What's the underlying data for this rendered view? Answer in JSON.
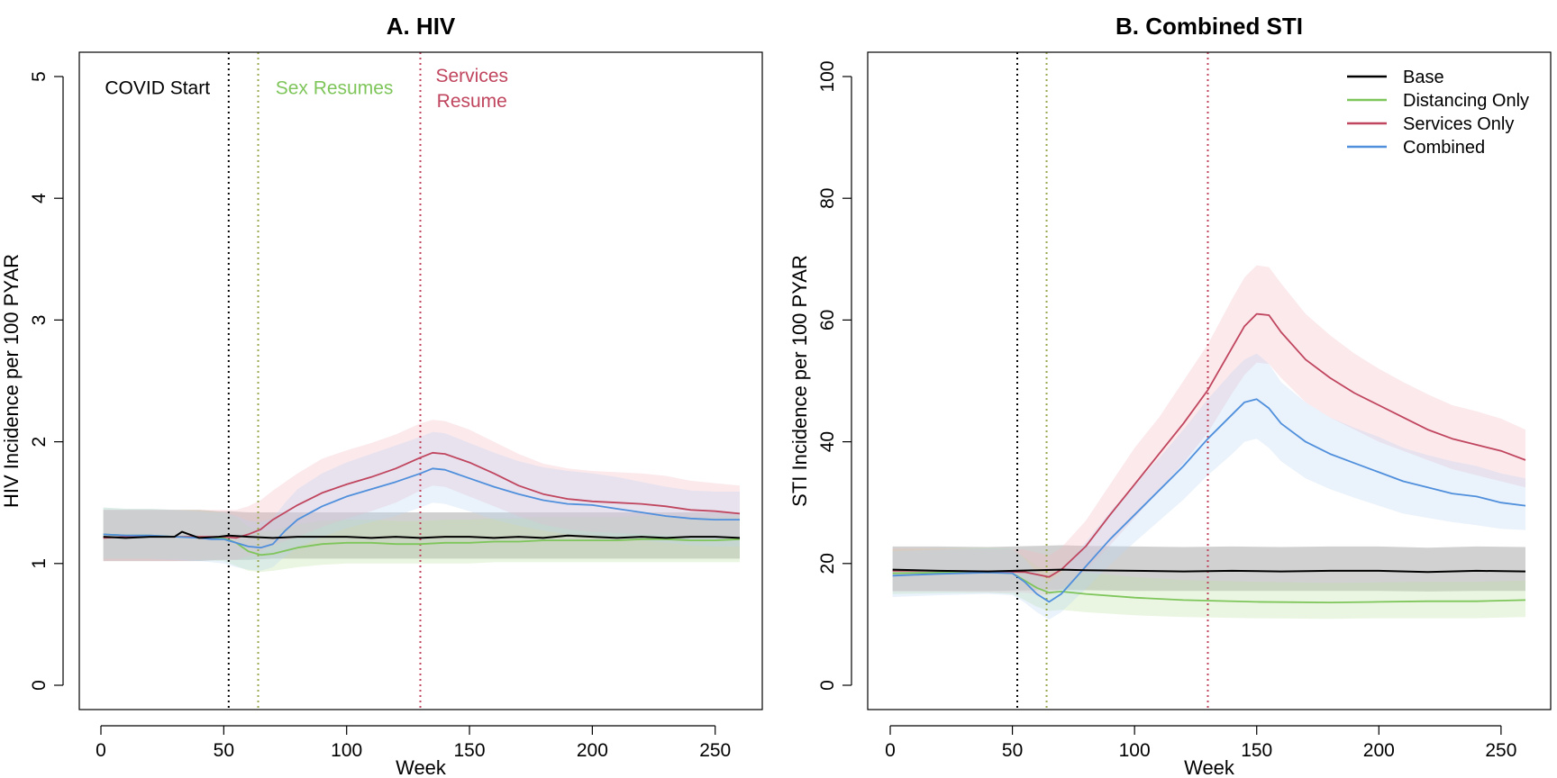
{
  "colors": {
    "base": "#000000",
    "distancing": "#7ec55a",
    "services": "#c0455e",
    "combined": "#4f8fdc",
    "base_band": "#9a9a9a",
    "distancing_band": "#b9e0a0",
    "services_band": "#f2b5c1",
    "combined_band": "#b8d3f2",
    "sex_line": "#9aa84e"
  },
  "chart_data": [
    {
      "type": "line",
      "title": "A. HIV",
      "xlabel": "Week",
      "ylabel": "HIV Incidence per 100 PYAR",
      "xlim": [
        0,
        260
      ],
      "ylim": [
        0,
        5
      ],
      "xticks": [
        0,
        50,
        100,
        150,
        200,
        250
      ],
      "yticks": [
        0,
        1,
        2,
        3,
        4,
        5
      ],
      "grid": false,
      "vlines": [
        {
          "x": 52,
          "color": "#000000"
        },
        {
          "x": 64,
          "color": "#9aa84e"
        },
        {
          "x": 130,
          "color": "#c0455e"
        }
      ],
      "annotations": [
        {
          "lines": [
            "COVID Start"
          ],
          "x": 23,
          "y": 4.9,
          "color": "#000000"
        },
        {
          "lines": [
            "Sex Resumes"
          ],
          "x": 95,
          "y": 4.9,
          "color": "#7ec55a"
        },
        {
          "lines": [
            "Services",
            "Resume"
          ],
          "x": 151,
          "y": 5.0,
          "color": "#c0455e"
        }
      ],
      "series": [
        {
          "key": "base",
          "x": [
            1,
            10,
            20,
            30,
            33,
            40,
            48,
            52,
            60,
            70,
            80,
            90,
            100,
            110,
            120,
            130,
            140,
            150,
            160,
            170,
            180,
            190,
            200,
            210,
            220,
            230,
            240,
            250,
            260
          ],
          "y": [
            1.22,
            1.21,
            1.22,
            1.22,
            1.26,
            1.21,
            1.22,
            1.23,
            1.22,
            1.21,
            1.22,
            1.22,
            1.22,
            1.21,
            1.22,
            1.21,
            1.22,
            1.22,
            1.21,
            1.22,
            1.21,
            1.23,
            1.22,
            1.21,
            1.22,
            1.21,
            1.22,
            1.22,
            1.21
          ],
          "lo": [
            1.02,
            1.02,
            1.02,
            1.02,
            1.02,
            1.02,
            1.03,
            1.03,
            1.03,
            1.04,
            1.04,
            1.04,
            1.04,
            1.04,
            1.04,
            1.04,
            1.04,
            1.04,
            1.04,
            1.04,
            1.04,
            1.04,
            1.04,
            1.04,
            1.04,
            1.04,
            1.04,
            1.04,
            1.04
          ],
          "hi": [
            1.44,
            1.44,
            1.44,
            1.44,
            1.44,
            1.44,
            1.43,
            1.43,
            1.42,
            1.42,
            1.42,
            1.42,
            1.42,
            1.42,
            1.42,
            1.42,
            1.42,
            1.42,
            1.42,
            1.42,
            1.42,
            1.42,
            1.42,
            1.42,
            1.42,
            1.42,
            1.42,
            1.42,
            1.42
          ]
        },
        {
          "key": "distancing",
          "x": [
            1,
            10,
            20,
            30,
            40,
            50,
            55,
            60,
            65,
            70,
            80,
            90,
            100,
            110,
            120,
            130,
            140,
            150,
            160,
            170,
            180,
            190,
            200,
            210,
            220,
            230,
            240,
            250,
            260
          ],
          "y": [
            1.24,
            1.23,
            1.23,
            1.22,
            1.22,
            1.21,
            1.17,
            1.1,
            1.07,
            1.08,
            1.13,
            1.16,
            1.17,
            1.17,
            1.16,
            1.16,
            1.17,
            1.17,
            1.18,
            1.18,
            1.19,
            1.19,
            1.19,
            1.19,
            1.2,
            1.2,
            1.19,
            1.19,
            1.2
          ],
          "lo": [
            1.04,
            1.04,
            1.04,
            1.04,
            1.03,
            1.02,
            0.98,
            0.94,
            0.93,
            0.94,
            0.97,
            0.99,
            1.0,
            1.0,
            1.0,
            1.0,
            1.0,
            1.0,
            1.01,
            1.01,
            1.01,
            1.01,
            1.01,
            1.01,
            1.01,
            1.01,
            1.01,
            1.01,
            1.01
          ],
          "hi": [
            1.46,
            1.45,
            1.45,
            1.44,
            1.44,
            1.42,
            1.38,
            1.3,
            1.26,
            1.27,
            1.32,
            1.35,
            1.36,
            1.36,
            1.35,
            1.35,
            1.36,
            1.36,
            1.37,
            1.37,
            1.38,
            1.38,
            1.38,
            1.38,
            1.39,
            1.39,
            1.38,
            1.38,
            1.39
          ]
        },
        {
          "key": "services",
          "x": [
            1,
            10,
            20,
            30,
            40,
            50,
            55,
            60,
            65,
            70,
            80,
            90,
            100,
            110,
            120,
            130,
            135,
            140,
            150,
            160,
            170,
            180,
            190,
            200,
            210,
            220,
            230,
            240,
            250,
            260
          ],
          "y": [
            1.21,
            1.22,
            1.22,
            1.22,
            1.22,
            1.22,
            1.21,
            1.24,
            1.28,
            1.36,
            1.48,
            1.58,
            1.65,
            1.71,
            1.78,
            1.87,
            1.91,
            1.9,
            1.83,
            1.74,
            1.64,
            1.57,
            1.53,
            1.51,
            1.5,
            1.49,
            1.47,
            1.44,
            1.43,
            1.41
          ],
          "lo": [
            1.02,
            1.02,
            1.02,
            1.02,
            1.03,
            1.03,
            1.03,
            1.06,
            1.1,
            1.15,
            1.22,
            1.3,
            1.37,
            1.43,
            1.5,
            1.6,
            1.64,
            1.63,
            1.55,
            1.47,
            1.39,
            1.32,
            1.28,
            1.26,
            1.25,
            1.24,
            1.23,
            1.22,
            1.21,
            1.2
          ],
          "hi": [
            1.44,
            1.44,
            1.44,
            1.44,
            1.44,
            1.44,
            1.44,
            1.47,
            1.52,
            1.6,
            1.74,
            1.86,
            1.93,
            1.99,
            2.06,
            2.15,
            2.18,
            2.17,
            2.1,
            2.0,
            1.9,
            1.82,
            1.78,
            1.76,
            1.75,
            1.74,
            1.72,
            1.68,
            1.66,
            1.64
          ]
        },
        {
          "key": "combined",
          "x": [
            1,
            10,
            20,
            30,
            40,
            45,
            50,
            55,
            60,
            65,
            70,
            75,
            80,
            90,
            100,
            110,
            120,
            130,
            135,
            140,
            150,
            160,
            170,
            180,
            190,
            200,
            210,
            220,
            230,
            240,
            250,
            260
          ],
          "y": [
            1.24,
            1.23,
            1.23,
            1.22,
            1.21,
            1.2,
            1.2,
            1.17,
            1.14,
            1.13,
            1.16,
            1.27,
            1.36,
            1.47,
            1.55,
            1.61,
            1.67,
            1.74,
            1.78,
            1.77,
            1.7,
            1.63,
            1.57,
            1.52,
            1.49,
            1.48,
            1.45,
            1.42,
            1.39,
            1.37,
            1.36,
            1.36
          ],
          "lo": [
            1.04,
            1.04,
            1.04,
            1.03,
            1.02,
            1.01,
            1.0,
            0.97,
            0.95,
            0.94,
            0.97,
            1.06,
            1.13,
            1.22,
            1.29,
            1.34,
            1.39,
            1.46,
            1.5,
            1.49,
            1.43,
            1.36,
            1.31,
            1.27,
            1.24,
            1.23,
            1.21,
            1.19,
            1.17,
            1.15,
            1.14,
            1.14
          ],
          "hi": [
            1.46,
            1.45,
            1.45,
            1.44,
            1.43,
            1.42,
            1.42,
            1.39,
            1.35,
            1.34,
            1.37,
            1.5,
            1.61,
            1.74,
            1.83,
            1.9,
            1.97,
            2.04,
            2.08,
            2.07,
            1.99,
            1.91,
            1.84,
            1.79,
            1.76,
            1.74,
            1.71,
            1.67,
            1.63,
            1.6,
            1.59,
            1.59
          ]
        }
      ]
    },
    {
      "type": "line",
      "title": "B. Combined STI",
      "xlabel": "Week",
      "ylabel": "STI Incidence per 100 PYAR",
      "xlim": [
        0,
        260
      ],
      "ylim": [
        0,
        100
      ],
      "xticks": [
        0,
        50,
        100,
        150,
        200,
        250
      ],
      "yticks": [
        0,
        20,
        40,
        60,
        80,
        100
      ],
      "grid": false,
      "legend": {
        "position": "top-right",
        "entries": [
          "Base",
          "Distancing Only",
          "Services Only",
          "Combined"
        ]
      },
      "vlines": [
        {
          "x": 52,
          "color": "#000000"
        },
        {
          "x": 64,
          "color": "#9aa84e"
        },
        {
          "x": 130,
          "color": "#c0455e"
        }
      ],
      "series": [
        {
          "key": "base",
          "name": "Base",
          "x": [
            1,
            20,
            40,
            60,
            70,
            80,
            100,
            120,
            140,
            160,
            180,
            200,
            220,
            240,
            260
          ],
          "y": [
            19.0,
            18.8,
            18.7,
            18.9,
            19.0,
            18.9,
            18.8,
            18.7,
            18.8,
            18.7,
            18.8,
            18.8,
            18.6,
            18.8,
            18.7
          ],
          "lo": [
            15.5,
            15.5,
            15.5,
            15.6,
            15.7,
            15.6,
            15.5,
            15.5,
            15.5,
            15.5,
            15.5,
            15.5,
            15.4,
            15.5,
            15.5
          ],
          "hi": [
            22.8,
            22.8,
            22.7,
            22.9,
            23.0,
            22.9,
            22.8,
            22.7,
            22.8,
            22.7,
            22.8,
            22.8,
            22.6,
            22.8,
            22.7
          ]
        },
        {
          "key": "distancing",
          "name": "Distancing Only",
          "x": [
            1,
            20,
            40,
            50,
            55,
            60,
            65,
            70,
            80,
            100,
            120,
            150,
            180,
            200,
            220,
            240,
            260
          ],
          "y": [
            18.4,
            18.5,
            18.6,
            18.4,
            17.2,
            16.0,
            15.2,
            15.4,
            15.0,
            14.4,
            14.0,
            13.7,
            13.6,
            13.7,
            13.8,
            13.8,
            14.0
          ],
          "lo": [
            15.0,
            15.1,
            15.2,
            15.0,
            14.0,
            12.9,
            12.2,
            12.4,
            12.0,
            11.5,
            11.2,
            11.0,
            10.9,
            11.0,
            11.0,
            11.0,
            11.2
          ],
          "hi": [
            22.4,
            22.5,
            22.6,
            22.4,
            21.0,
            19.6,
            18.7,
            18.9,
            18.5,
            17.8,
            17.3,
            17.0,
            16.8,
            16.9,
            17.0,
            17.0,
            17.2
          ]
        },
        {
          "key": "services",
          "name": "Services Only",
          "x": [
            1,
            20,
            40,
            55,
            65,
            70,
            80,
            90,
            100,
            110,
            120,
            130,
            140,
            145,
            150,
            155,
            160,
            170,
            180,
            190,
            200,
            210,
            220,
            230,
            240,
            250,
            260
          ],
          "y": [
            18.8,
            18.8,
            18.7,
            18.6,
            17.8,
            19.0,
            22.8,
            28.0,
            33.0,
            38.0,
            43.0,
            48.5,
            55.5,
            59.0,
            61.0,
            60.8,
            58.0,
            53.5,
            50.5,
            48.0,
            46.0,
            44.0,
            42.0,
            40.5,
            39.5,
            38.5,
            37.0
          ],
          "lo": [
            15.4,
            15.4,
            15.3,
            15.2,
            14.8,
            15.8,
            18.8,
            23.0,
            27.5,
            32.0,
            36.5,
            41.5,
            48.0,
            51.0,
            53.0,
            52.8,
            50.5,
            46.5,
            44.0,
            42.0,
            40.0,
            38.5,
            37.0,
            35.5,
            34.5,
            33.5,
            32.5
          ],
          "hi": [
            22.5,
            22.5,
            22.4,
            22.3,
            21.3,
            22.6,
            27.0,
            33.0,
            39.0,
            44.0,
            50.0,
            56.0,
            63.5,
            67.0,
            69.0,
            68.7,
            66.0,
            61.0,
            57.5,
            54.5,
            52.0,
            49.8,
            47.8,
            46.0,
            45.0,
            43.8,
            42.0
          ]
        },
        {
          "key": "combined",
          "name": "Combined",
          "x": [
            1,
            20,
            40,
            50,
            55,
            60,
            65,
            70,
            80,
            90,
            100,
            110,
            120,
            130,
            140,
            145,
            150,
            155,
            160,
            170,
            180,
            190,
            200,
            210,
            220,
            230,
            240,
            250,
            260
          ],
          "y": [
            18.0,
            18.3,
            18.5,
            18.4,
            17.0,
            15.0,
            13.7,
            15.0,
            19.5,
            24.0,
            28.0,
            32.0,
            36.0,
            40.5,
            44.5,
            46.5,
            47.0,
            45.5,
            43.0,
            40.0,
            38.0,
            36.5,
            35.0,
            33.5,
            32.5,
            31.5,
            31.0,
            30.0,
            29.5
          ],
          "lo": [
            14.5,
            14.8,
            15.0,
            14.8,
            13.6,
            12.0,
            10.8,
            12.0,
            15.8,
            19.8,
            23.5,
            27.0,
            30.5,
            34.5,
            38.0,
            40.0,
            40.5,
            39.0,
            36.8,
            34.0,
            32.2,
            30.8,
            29.5,
            28.2,
            27.5,
            26.8,
            26.3,
            25.7,
            25.5
          ],
          "hi": [
            22.0,
            22.3,
            22.5,
            22.4,
            20.8,
            18.5,
            17.0,
            18.5,
            23.5,
            28.5,
            33.0,
            37.3,
            42.0,
            47.0,
            51.5,
            53.5,
            54.5,
            52.8,
            49.8,
            46.5,
            44.0,
            42.3,
            40.8,
            39.0,
            37.8,
            36.8,
            36.0,
            34.8,
            34.0
          ]
        }
      ]
    }
  ]
}
